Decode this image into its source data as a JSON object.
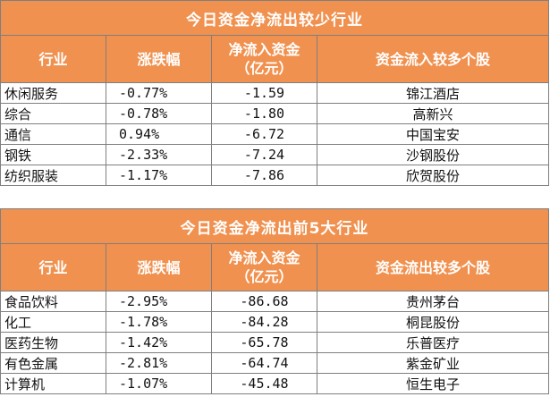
{
  "table1": {
    "title": "今日资金净流出较少行业",
    "headers": [
      "行业",
      "涨跌幅",
      "净流入资金",
      "（亿元）",
      "资金流入较多个股"
    ],
    "rows": [
      {
        "industry": "休闲服务",
        "change": "-0.77%",
        "net": "-1.59",
        "stock": "锦江酒店"
      },
      {
        "industry": "综合",
        "change": "-0.78%",
        "net": "-1.80",
        "stock": "高新兴"
      },
      {
        "industry": "通信",
        "change": "0.94%",
        "net": "-6.72",
        "stock": "中国宝安"
      },
      {
        "industry": "钢铁",
        "change": "-2.33%",
        "net": "-7.24",
        "stock": "沙钢股份"
      },
      {
        "industry": "纺织服装",
        "change": "-1.17%",
        "net": "-7.86",
        "stock": "欣贺股份"
      }
    ]
  },
  "table2": {
    "title": "今日资金净流出前5大行业",
    "headers": [
      "行业",
      "涨跌幅",
      "净流入资金",
      "（亿元）",
      "资金流出较多个股"
    ],
    "rows": [
      {
        "industry": "食品饮料",
        "change": "-2.95%",
        "net": "-86.68",
        "stock": "贵州茅台"
      },
      {
        "industry": "化工",
        "change": "-1.78%",
        "net": "-84.28",
        "stock": "桐昆股份"
      },
      {
        "industry": "医药生物",
        "change": "-1.42%",
        "net": "-65.78",
        "stock": "乐普医疗"
      },
      {
        "industry": "有色金属",
        "change": "-2.81%",
        "net": "-64.74",
        "stock": "紫金矿业"
      },
      {
        "industry": "计算机",
        "change": "-1.07%",
        "net": "-45.48",
        "stock": "恒生电子"
      }
    ]
  }
}
